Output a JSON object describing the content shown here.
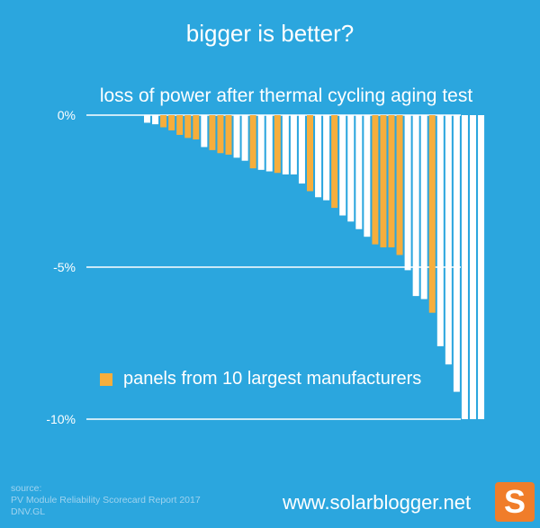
{
  "title": "bigger is better?",
  "chart_data": {
    "type": "bar",
    "subtitle": "loss of power after thermal cycling aging test",
    "ylim": [
      -10,
      0
    ],
    "yticks": [
      0,
      -5,
      -10
    ],
    "ytick_labels": [
      "0%",
      "-5%",
      "-10%"
    ],
    "values": [
      -0.25,
      -0.3,
      -0.4,
      -0.5,
      -0.65,
      -0.75,
      -0.8,
      -1.05,
      -1.15,
      -1.25,
      -1.3,
      -1.4,
      -1.5,
      -1.75,
      -1.8,
      -1.85,
      -1.9,
      -1.95,
      -1.95,
      -2.25,
      -2.5,
      -2.7,
      -2.8,
      -3.05,
      -3.3,
      -3.5,
      -3.75,
      -4.0,
      -4.25,
      -4.35,
      -4.35,
      -4.6,
      -5.1,
      -5.95,
      -6.05,
      -6.5,
      -7.6,
      -8.2,
      -9.1,
      -10.0,
      -10.0,
      -10.0
    ],
    "highlight": [
      false,
      false,
      true,
      true,
      true,
      true,
      true,
      false,
      true,
      true,
      true,
      false,
      false,
      true,
      false,
      false,
      true,
      false,
      false,
      false,
      true,
      false,
      false,
      true,
      false,
      false,
      false,
      false,
      true,
      true,
      true,
      true,
      false,
      false,
      false,
      true,
      false,
      false,
      false,
      false,
      false,
      false
    ],
    "legend": [
      "panels from 10 largest manufacturers"
    ],
    "colors": {
      "normal": "#FFFFFF",
      "highlight": "#F6AE3C",
      "background": "#2BA6DE"
    }
  },
  "source": {
    "label": "source:",
    "lines": [
      "PV Module Reliability Scorecard Report 2017",
      "DNV.GL"
    ]
  },
  "website": "www.solarblogger.net",
  "logo_letter": "S"
}
